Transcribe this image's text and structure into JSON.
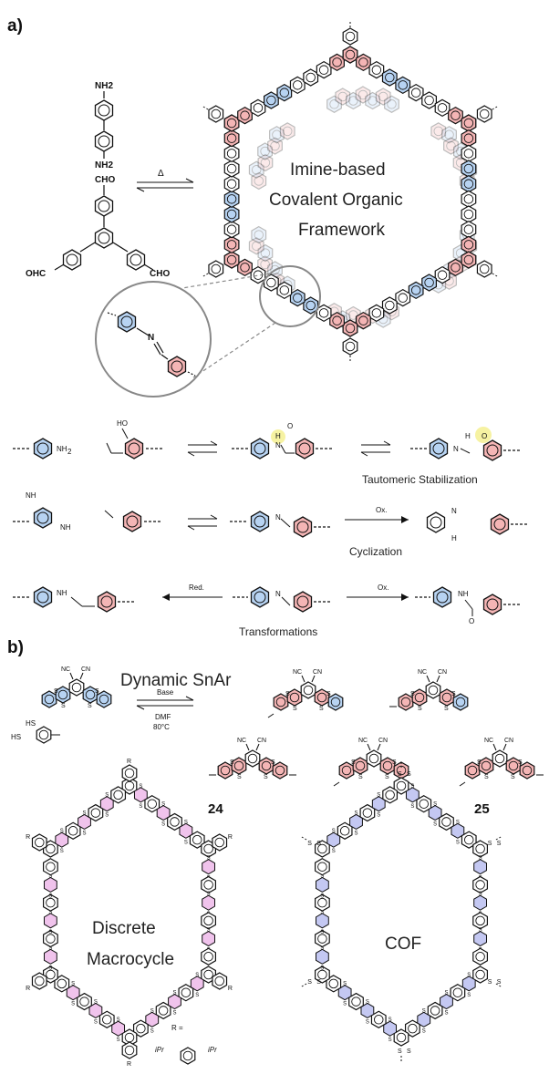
{
  "panel_a": {
    "label": "a)",
    "monomer_amine_group": "NH2",
    "monomer_aldehyde_group": "CHO",
    "aldehyde_left": "OHC",
    "arrow_label": "Δ",
    "cof_title_lines": [
      "Imine-based",
      "Covalent Organic",
      "Framework"
    ],
    "imine_atom": "N"
  },
  "reactions": {
    "row1_amine": "NH",
    "row1_amine_sub": "2",
    "row1_oh": "HO",
    "row1_caption": "Tautomeric Stabilization",
    "row2_nh2_top": "NH",
    "row2_nh2_bottom": "NH",
    "row2_ox": "Ox.",
    "row2_caption": "Cyclization",
    "row3_red": "Red.",
    "row3_ox": "Ox.",
    "row3_nh": "NH",
    "row3_caption": "Transformations",
    "row3_o": "O",
    "row1_h": "H",
    "row1_o": "O",
    "row1_n": "N",
    "row2_n": "N",
    "row2_h": "H"
  },
  "panel_b": {
    "label": "b)",
    "snar_title": "Dynamic SnAr",
    "conditions_base": "Base",
    "conditions_solvent": "DMF",
    "conditions_temp": "80°C",
    "nitrile": "NC",
    "cn": "CN",
    "sulfur": "S",
    "thiol": "HS",
    "compound_24": "24",
    "compound_25": "25",
    "macrocycle_lines": [
      "Discrete",
      "Macrocycle"
    ],
    "cof_label": "COF",
    "r_def": "R =",
    "ipr": "iPr",
    "r_sub": "R"
  },
  "colors": {
    "blue_ring": "#b7d3f2",
    "red_ring": "#f4b5b5",
    "pink_ring": "#f0c3ec",
    "lavender_ring": "#c4c8f2",
    "highlight": "#f6f2a2",
    "circle_stroke": "#888888"
  }
}
